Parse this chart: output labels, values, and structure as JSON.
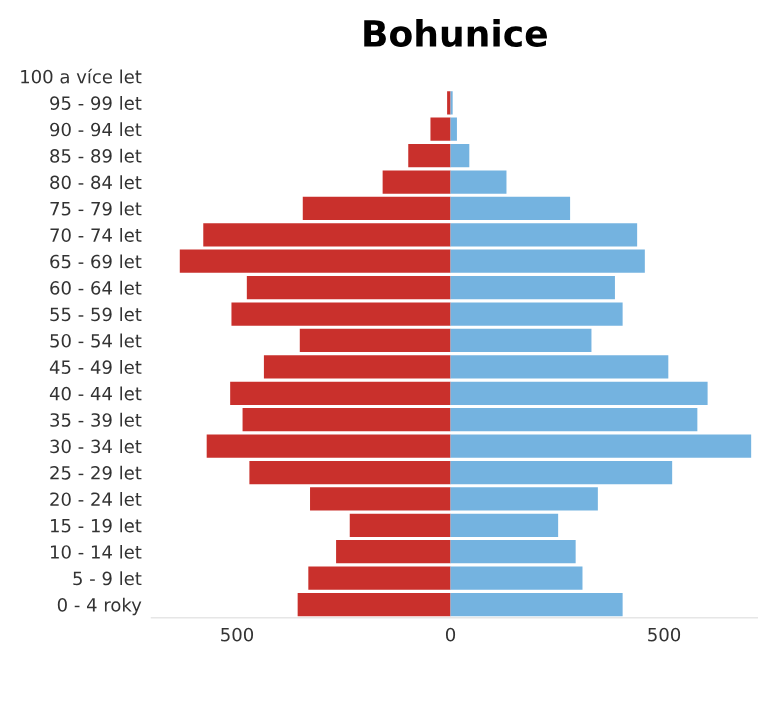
{
  "chart_data": {
    "type": "bar",
    "title": "Bohunice",
    "orientation": "horizontal",
    "stacked": true,
    "categories": [
      "100 a více let",
      "95 - 99 let",
      "90 - 94 let",
      "85 - 89 let",
      "80 - 84 let",
      "75 - 79 let",
      "70 - 74 let",
      "65 - 69 let",
      "60 - 64 let",
      "55 - 59 let",
      "50 - 54 let",
      "45 - 49 let",
      "40 - 44 let",
      "35 - 39 let",
      "30 - 34 let",
      "25 - 29 let",
      "20 - 24 let",
      "15 - 19 let",
      "10 - 14 let",
      "5 - 9 let",
      "0 - 4 roky"
    ],
    "series": [
      {
        "color": "#c9302c",
        "values": [
          0,
          -8,
          -47,
          -99,
          -159,
          -346,
          -579,
          -634,
          -477,
          -513,
          -353,
          -437,
          -516,
          -487,
          -571,
          -471,
          -329,
          -236,
          -268,
          -333,
          -358
        ]
      },
      {
        "color": "#74b3e0",
        "values": [
          0,
          5,
          15,
          44,
          131,
          280,
          437,
          455,
          385,
          403,
          330,
          510,
          602,
          578,
          704,
          519,
          345,
          252,
          293,
          309,
          403
        ]
      }
    ],
    "xlim": [
      -700,
      720
    ],
    "xticks": [
      {
        "value": -500,
        "label": "500"
      },
      0,
      500
    ],
    "grid": false,
    "legend": false
  }
}
